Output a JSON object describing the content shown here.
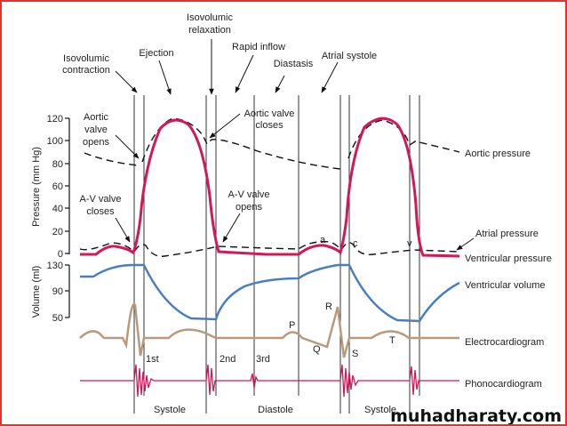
{
  "phases": {
    "isovolumic_contraction": [
      "Isovolumic",
      "contraction"
    ],
    "ejection": "Ejection",
    "isovolumic_relaxation": [
      "Isovolumic",
      "relaxation"
    ],
    "rapid_inflow": "Rapid inflow",
    "diastasis": "Diastasis",
    "atrial_systole": "Atrial systole"
  },
  "annotations": {
    "aortic_valve_opens": [
      "Aortic",
      "valve",
      "opens"
    ],
    "aortic_valve_closes": [
      "Aortic valve",
      "closes"
    ],
    "av_valve_closes": [
      "A-V valve",
      "closes"
    ],
    "av_valve_opens": [
      "A-V valve",
      "opens"
    ],
    "wave_a": "a",
    "wave_c": "c",
    "wave_v": "v",
    "ecg_p": "P",
    "ecg_q": "Q",
    "ecg_r": "R",
    "ecg_s": "S",
    "ecg_t": "T",
    "sound_1": "1st",
    "sound_2": "2nd",
    "sound_3": "3rd"
  },
  "axes": {
    "pressure_label": "Pressure (mm Hg)",
    "pressure_ticks": [
      "120",
      "100",
      "80",
      "60",
      "40",
      "20",
      "0"
    ],
    "volume_label": "Volume (ml)",
    "volume_ticks": [
      "130",
      "90",
      "50"
    ]
  },
  "traces": {
    "aortic_pressure": "Aortic pressure",
    "atrial_pressure": "Atrial pressure",
    "ventricular_pressure": "Ventricular pressure",
    "ventricular_volume": "Ventricular volume",
    "ecg": "Electrocardiogram",
    "phono": "Phonocardiogram"
  },
  "periods": {
    "systole_1": "Systole",
    "diastole": "Diastole",
    "systole_2": "Systole"
  },
  "watermark": "muhadharaty.com",
  "colors": {
    "ventricular_pressure": "#d0185a",
    "volume": "#4a7fbf",
    "ecg": "#b89a7c",
    "phono": "#d0185a",
    "border": "#e8312c"
  }
}
